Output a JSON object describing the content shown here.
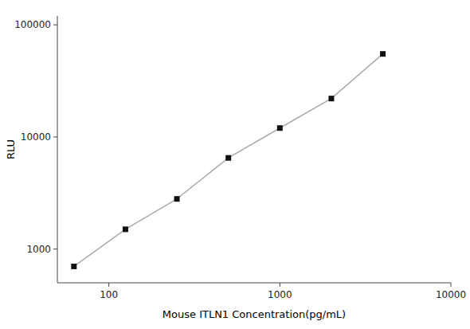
{
  "chart_data": {
    "type": "line",
    "x": [
      62.5,
      125,
      250,
      500,
      1000,
      2000,
      4000
    ],
    "values": [
      700,
      1500,
      2800,
      6500,
      12000,
      22000,
      55000
    ],
    "xlabel": "Mouse ITLN1 Concentration(pg/mL)",
    "ylabel": "RLU",
    "log": true,
    "xlim": [
      50,
      10000
    ],
    "ylim": [
      500,
      120000
    ],
    "xticks": [
      100,
      1000,
      10000
    ],
    "yticks": [
      1000,
      10000,
      100000
    ],
    "color": "#aaaaaa",
    "colors": [
      "#111111",
      "#111111",
      "#111111",
      "#111111",
      "#111111",
      "#111111",
      "#111111"
    ],
    "marker": "square",
    "grid": false
  }
}
